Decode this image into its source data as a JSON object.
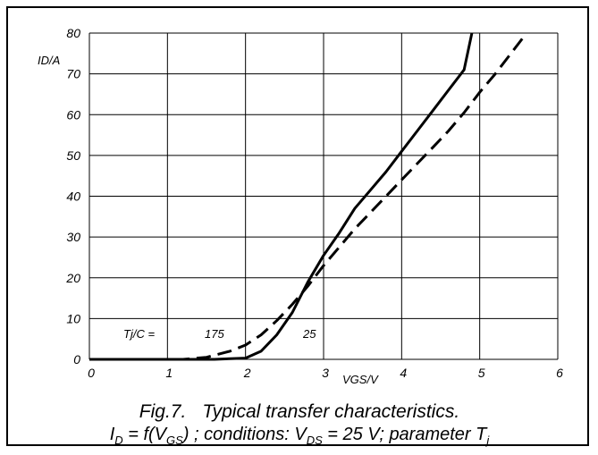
{
  "chart_data": {
    "type": "line",
    "ylabel": "ID/A",
    "xlabel": "VGS/V",
    "xlim": [
      0,
      6
    ],
    "ylim": [
      0,
      80
    ],
    "x_ticks": [
      "0",
      "1",
      "2",
      "3",
      "4",
      "5",
      "6"
    ],
    "y_ticks": [
      "0",
      "10",
      "20",
      "30",
      "40",
      "50",
      "60",
      "70",
      "80"
    ],
    "grid": true,
    "annotations": {
      "param_label": "Tj/C =",
      "curve_175": "175",
      "curve_25": "25"
    },
    "series": [
      {
        "name": "25",
        "style": "solid",
        "points": [
          [
            0,
            0
          ],
          [
            1.6,
            0
          ],
          [
            2.0,
            0.3
          ],
          [
            2.2,
            2
          ],
          [
            2.4,
            6
          ],
          [
            2.6,
            11.5
          ],
          [
            2.8,
            19
          ],
          [
            3.0,
            25.5
          ],
          [
            3.2,
            31
          ],
          [
            3.4,
            37
          ],
          [
            3.6,
            41.5
          ],
          [
            3.8,
            46
          ],
          [
            4.0,
            51
          ],
          [
            4.2,
            56
          ],
          [
            4.4,
            61
          ],
          [
            4.6,
            66
          ],
          [
            4.8,
            71
          ],
          [
            4.9,
            80
          ]
        ]
      },
      {
        "name": "175",
        "style": "dashed",
        "points": [
          [
            0,
            0
          ],
          [
            1.2,
            0
          ],
          [
            1.5,
            0.5
          ],
          [
            1.8,
            2
          ],
          [
            2.0,
            3.5
          ],
          [
            2.2,
            6
          ],
          [
            2.4,
            9.5
          ],
          [
            2.6,
            13.5
          ],
          [
            2.8,
            18
          ],
          [
            3.0,
            23
          ],
          [
            3.2,
            27.5
          ],
          [
            3.4,
            32
          ],
          [
            3.6,
            36
          ],
          [
            3.8,
            40
          ],
          [
            4.0,
            44
          ],
          [
            4.2,
            48
          ],
          [
            4.4,
            52
          ],
          [
            4.6,
            56
          ],
          [
            4.8,
            60.5
          ],
          [
            5.0,
            65.5
          ],
          [
            5.2,
            70
          ],
          [
            5.4,
            75
          ],
          [
            5.6,
            80
          ]
        ]
      }
    ]
  },
  "caption": {
    "line1_a": "Fig.7.",
    "line1_b": "Typical transfer characteristics.",
    "line2": {
      "i": "I",
      "i_sub": "D",
      "eq": " = f(V",
      "gs_sub": "GS",
      "mid": ") ; conditions: V",
      "ds_sub": "DS",
      "cond": " = 25 V; parameter T",
      "t_sub": "j"
    }
  }
}
